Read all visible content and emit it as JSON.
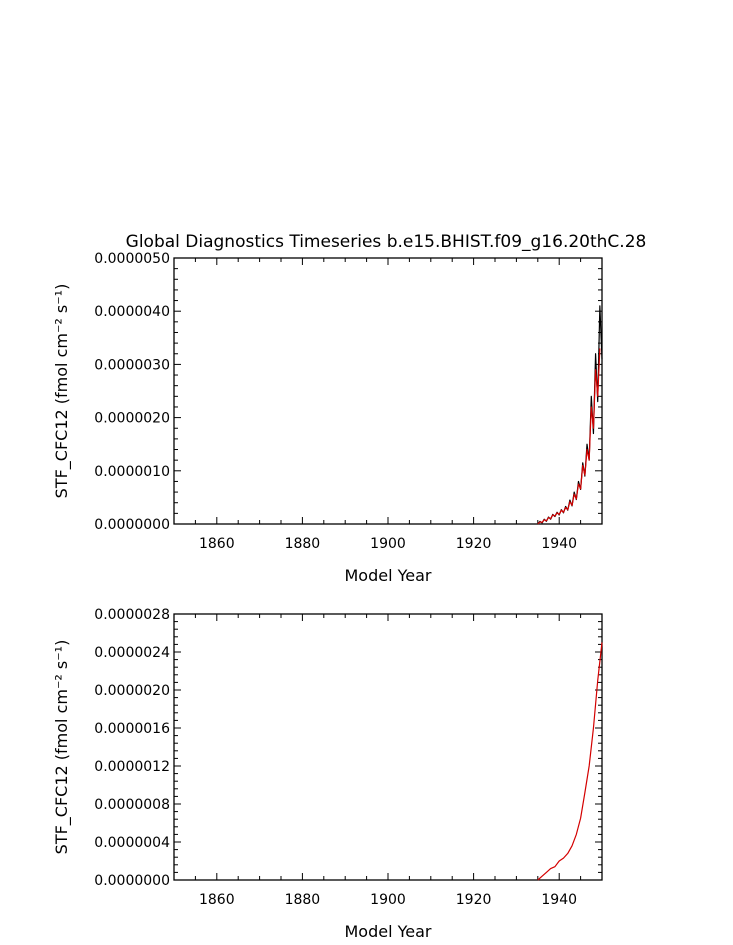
{
  "title": "Global Diagnostics Timeseries b.e15.BHIST.f09_g16.20thC.28",
  "chart_data": [
    {
      "type": "line",
      "xlabel": "Model Year",
      "ylabel": "STF_CFC12 (fmol cm⁻² s⁻¹)",
      "xlim": [
        1850,
        1950
      ],
      "ylim": [
        0,
        5e-06
      ],
      "xticks": [
        1860,
        1880,
        1900,
        1920,
        1940
      ],
      "xtick_labels": [
        "1860",
        "1880",
        "1900",
        "1920",
        "1940"
      ],
      "yticks": [
        0,
        1e-06,
        2e-06,
        3e-06,
        4e-06,
        5e-06
      ],
      "ytick_labels": [
        "0.0000000",
        "0.0000010",
        "0.0000020",
        "0.0000030",
        "0.0000040",
        "0.0000050"
      ],
      "series": [
        {
          "color": "#000000",
          "x": [
            1935.0,
            1935.5,
            1936.0,
            1936.5,
            1937.0,
            1937.5,
            1938.0,
            1938.5,
            1939.0,
            1939.5,
            1940.0,
            1940.5,
            1941.0,
            1941.5,
            1942.0,
            1942.5,
            1943.0,
            1943.5,
            1944.0,
            1944.5,
            1945.0,
            1945.5,
            1946.0,
            1946.5,
            1947.0,
            1947.5,
            1948.0,
            1948.5,
            1949.0,
            1949.5,
            1950.0
          ],
          "y": [
            0.0,
            5e-08,
            2e-08,
            9e-08,
            5e-08,
            1.3e-07,
            9e-08,
            1.8e-07,
            1.4e-07,
            2.2e-07,
            1.7e-07,
            2.7e-07,
            2.1e-07,
            3.3e-07,
            2.6e-07,
            4.5e-07,
            3.4e-07,
            6e-07,
            4.6e-07,
            8e-07,
            6.5e-07,
            1.15e-06,
            9e-07,
            1.5e-06,
            1.2e-06,
            2.4e-06,
            1.7e-06,
            3.2e-06,
            2.3e-06,
            4.1e-06,
            3.1e-06
          ]
        },
        {
          "color": "#d40000",
          "x": [
            1935.0,
            1935.5,
            1936.0,
            1936.5,
            1937.0,
            1937.5,
            1938.0,
            1938.5,
            1939.0,
            1939.5,
            1940.0,
            1940.5,
            1941.0,
            1941.5,
            1942.0,
            1942.5,
            1943.0,
            1943.5,
            1944.0,
            1944.5,
            1945.0,
            1945.5,
            1946.0,
            1946.5,
            1947.0,
            1947.5,
            1948.0,
            1948.5,
            1949.0,
            1949.5
          ],
          "y": [
            0.0,
            4e-08,
            3e-08,
            8e-08,
            6e-08,
            1.2e-07,
            1e-07,
            1.7e-07,
            1.5e-07,
            2.1e-07,
            1.8e-07,
            2.6e-07,
            2.2e-07,
            3.1e-07,
            2.7e-07,
            4.2e-07,
            3.5e-07,
            5.6e-07,
            4.7e-07,
            7.5e-07,
            6.6e-07,
            1.1e-06,
            9.2e-07,
            1.4e-06,
            1.2e-06,
            2.2e-06,
            1.8e-06,
            2.9e-06,
            2.4e-06,
            3.3e-06
          ]
        }
      ]
    },
    {
      "type": "line",
      "xlabel": "Model Year",
      "ylabel": "STF_CFC12 (fmol cm⁻² s⁻¹)",
      "xlim": [
        1850,
        1950
      ],
      "ylim": [
        0,
        2.8e-06
      ],
      "xticks": [
        1860,
        1880,
        1900,
        1920,
        1940
      ],
      "xtick_labels": [
        "1860",
        "1880",
        "1900",
        "1920",
        "1940"
      ],
      "yticks": [
        0,
        4e-07,
        8e-07,
        1.2e-06,
        1.6e-06,
        2e-06,
        2.4e-06,
        2.8e-06
      ],
      "ytick_labels": [
        "0.0000000",
        "0.0000004",
        "0.0000008",
        "0.0000012",
        "0.0000016",
        "0.0000020",
        "0.0000024",
        "0.0000028"
      ],
      "series": [
        {
          "color": "#d40000",
          "x": [
            1935.0,
            1936.0,
            1937.0,
            1938.0,
            1939.0,
            1940.0,
            1941.0,
            1942.0,
            1943.0,
            1944.0,
            1945.0,
            1946.0,
            1947.0,
            1948.0,
            1949.0,
            1950.0
          ],
          "y": [
            0.0,
            4e-08,
            8e-08,
            1.2e-07,
            1.4e-07,
            2e-07,
            2.3e-07,
            2.8e-07,
            3.6e-07,
            4.8e-07,
            6.5e-07,
            9.2e-07,
            1.2e-06,
            1.6e-06,
            2.1e-06,
            2.5e-06
          ]
        }
      ]
    }
  ]
}
